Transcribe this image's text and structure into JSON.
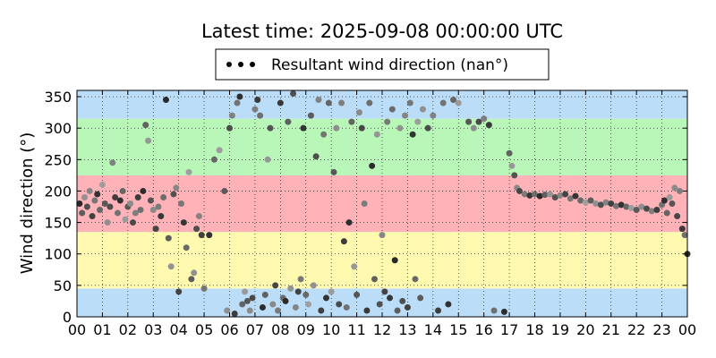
{
  "chart_data": {
    "type": "scatter",
    "title": "Latest time: 2025-09-08 00:00:00 UTC",
    "xlabel": "",
    "ylabel": "Wind direction (°)",
    "xlim": [
      0,
      24
    ],
    "ylim": [
      0,
      360
    ],
    "x_ticks": [
      "00",
      "01",
      "02",
      "03",
      "04",
      "05",
      "06",
      "07",
      "08",
      "09",
      "10",
      "11",
      "12",
      "13",
      "14",
      "15",
      "16",
      "17",
      "18",
      "19",
      "20",
      "21",
      "22",
      "23",
      "00"
    ],
    "y_ticks": [
      0,
      50,
      100,
      150,
      200,
      250,
      300,
      350
    ],
    "grid": true,
    "legend": {
      "placement": "top-center",
      "entries": [
        "Resultant wind direction (nan°)"
      ]
    },
    "background_bands": [
      {
        "from": 0,
        "to": 45,
        "color": "#bbddf8"
      },
      {
        "from": 45,
        "to": 135,
        "color": "#fffab0"
      },
      {
        "from": 135,
        "to": 225,
        "color": "#ffb3b8"
      },
      {
        "from": 225,
        "to": 315,
        "color": "#b8f7b8"
      },
      {
        "from": 315,
        "to": 360,
        "color": "#bbddf8"
      }
    ],
    "series": [
      {
        "name": "Resultant wind direction (nan°)",
        "color_range": [
          "#aaaaaa",
          "#111111"
        ],
        "points": [
          [
            0.1,
            180
          ],
          [
            0.2,
            165
          ],
          [
            0.3,
            190
          ],
          [
            0.4,
            175
          ],
          [
            0.5,
            200
          ],
          [
            0.6,
            160
          ],
          [
            0.7,
            185
          ],
          [
            0.8,
            195
          ],
          [
            0.9,
            170
          ],
          [
            1.0,
            210
          ],
          [
            1.1,
            180
          ],
          [
            1.2,
            150
          ],
          [
            1.3,
            175
          ],
          [
            1.4,
            245
          ],
          [
            1.5,
            190
          ],
          [
            1.6,
            165
          ],
          [
            1.7,
            185
          ],
          [
            1.8,
            200
          ],
          [
            1.9,
            155
          ],
          [
            2.0,
            175
          ],
          [
            2.1,
            180
          ],
          [
            2.2,
            150
          ],
          [
            2.3,
            165
          ],
          [
            2.4,
            190
          ],
          [
            2.5,
            170
          ],
          [
            2.6,
            200
          ],
          [
            2.7,
            305
          ],
          [
            2.8,
            280
          ],
          [
            2.9,
            185
          ],
          [
            3.0,
            170
          ],
          [
            3.1,
            140
          ],
          [
            3.2,
            175
          ],
          [
            3.3,
            160
          ],
          [
            3.4,
            190
          ],
          [
            3.5,
            345
          ],
          [
            3.6,
            125
          ],
          [
            3.7,
            80
          ],
          [
            3.8,
            195
          ],
          [
            3.9,
            205
          ],
          [
            4.0,
            40
          ],
          [
            4.1,
            180
          ],
          [
            4.2,
            150
          ],
          [
            4.3,
            110
          ],
          [
            4.4,
            230
          ],
          [
            4.5,
            60
          ],
          [
            4.6,
            70
          ],
          [
            4.7,
            140
          ],
          [
            4.8,
            160
          ],
          [
            4.9,
            130
          ],
          [
            5.0,
            45
          ],
          [
            5.2,
            130
          ],
          [
            5.4,
            250
          ],
          [
            5.6,
            265
          ],
          [
            5.8,
            200
          ],
          [
            5.9,
            10
          ],
          [
            6.0,
            300
          ],
          [
            6.1,
            320
          ],
          [
            6.2,
            5
          ],
          [
            6.3,
            340
          ],
          [
            6.4,
            350
          ],
          [
            6.5,
            20
          ],
          [
            6.6,
            40
          ],
          [
            6.7,
            25
          ],
          [
            6.8,
            10
          ],
          [
            6.9,
            30
          ],
          [
            7.0,
            330
          ],
          [
            7.1,
            345
          ],
          [
            7.2,
            320
          ],
          [
            7.3,
            15
          ],
          [
            7.4,
            35
          ],
          [
            7.5,
            250
          ],
          [
            7.6,
            300
          ],
          [
            7.7,
            20
          ],
          [
            7.8,
            50
          ],
          [
            7.9,
            10
          ],
          [
            8.0,
            340
          ],
          [
            8.1,
            30
          ],
          [
            8.2,
            25
          ],
          [
            8.3,
            310
          ],
          [
            8.4,
            45
          ],
          [
            8.5,
            355
          ],
          [
            8.6,
            15
          ],
          [
            8.7,
            40
          ],
          [
            8.8,
            60
          ],
          [
            8.9,
            300
          ],
          [
            9.0,
            35
          ],
          [
            9.1,
            20
          ],
          [
            9.2,
            320
          ],
          [
            9.3,
            50
          ],
          [
            9.4,
            255
          ],
          [
            9.5,
            345
          ],
          [
            9.6,
            10
          ],
          [
            9.7,
            290
          ],
          [
            9.8,
            30
          ],
          [
            9.9,
            340
          ],
          [
            10.0,
            40
          ],
          [
            10.1,
            230
          ],
          [
            10.2,
            300
          ],
          [
            10.3,
            20
          ],
          [
            10.4,
            340
          ],
          [
            10.5,
            120
          ],
          [
            10.6,
            15
          ],
          [
            10.7,
            150
          ],
          [
            10.8,
            310
          ],
          [
            10.9,
            80
          ],
          [
            11.0,
            35
          ],
          [
            11.1,
            325
          ],
          [
            11.2,
            300
          ],
          [
            11.3,
            180
          ],
          [
            11.4,
            10
          ],
          [
            11.5,
            340
          ],
          [
            11.6,
            240
          ],
          [
            11.7,
            60
          ],
          [
            11.8,
            290
          ],
          [
            11.9,
            20
          ],
          [
            12.0,
            130
          ],
          [
            12.1,
            40
          ],
          [
            12.2,
            310
          ],
          [
            12.3,
            30
          ],
          [
            12.4,
            330
          ],
          [
            12.5,
            90
          ],
          [
            12.6,
            10
          ],
          [
            12.7,
            300
          ],
          [
            12.8,
            25
          ],
          [
            12.9,
            320
          ],
          [
            13.0,
            15
          ],
          [
            13.1,
            340
          ],
          [
            13.2,
            290
          ],
          [
            13.3,
            60
          ],
          [
            13.4,
            310
          ],
          [
            13.5,
            30
          ],
          [
            13.6,
            330
          ],
          [
            13.8,
            300
          ],
          [
            14.0,
            320
          ],
          [
            14.2,
            10
          ],
          [
            14.4,
            340
          ],
          [
            14.6,
            20
          ],
          [
            14.8,
            345
          ],
          [
            15.0,
            340
          ],
          [
            15.4,
            310
          ],
          [
            15.6,
            300
          ],
          [
            15.8,
            310
          ],
          [
            16.0,
            315
          ],
          [
            16.2,
            305
          ],
          [
            16.4,
            10
          ],
          [
            16.8,
            8
          ],
          [
            17.0,
            260
          ],
          [
            17.1,
            240
          ],
          [
            17.2,
            225
          ],
          [
            17.3,
            205
          ],
          [
            17.4,
            200
          ],
          [
            17.6,
            195
          ],
          [
            17.8,
            193
          ],
          [
            18.0,
            195
          ],
          [
            18.2,
            192
          ],
          [
            18.4,
            194
          ],
          [
            18.6,
            195
          ],
          [
            18.8,
            190
          ],
          [
            19.0,
            193
          ],
          [
            19.2,
            195
          ],
          [
            19.4,
            188
          ],
          [
            19.6,
            192
          ],
          [
            19.8,
            185
          ],
          [
            20.0,
            182
          ],
          [
            20.2,
            185
          ],
          [
            20.4,
            180
          ],
          [
            20.6,
            178
          ],
          [
            20.8,
            182
          ],
          [
            21.0,
            180
          ],
          [
            21.2,
            176
          ],
          [
            21.4,
            178
          ],
          [
            21.6,
            175
          ],
          [
            21.8,
            173
          ],
          [
            22.0,
            170
          ],
          [
            22.2,
            175
          ],
          [
            22.4,
            172
          ],
          [
            22.6,
            168
          ],
          [
            22.8,
            170
          ],
          [
            23.0,
            178
          ],
          [
            23.1,
            185
          ],
          [
            23.2,
            165
          ],
          [
            23.3,
            190
          ],
          [
            23.4,
            180
          ],
          [
            23.5,
            205
          ],
          [
            23.6,
            160
          ],
          [
            23.7,
            200
          ],
          [
            23.8,
            140
          ],
          [
            23.9,
            130
          ],
          [
            24.0,
            100
          ]
        ]
      }
    ]
  }
}
